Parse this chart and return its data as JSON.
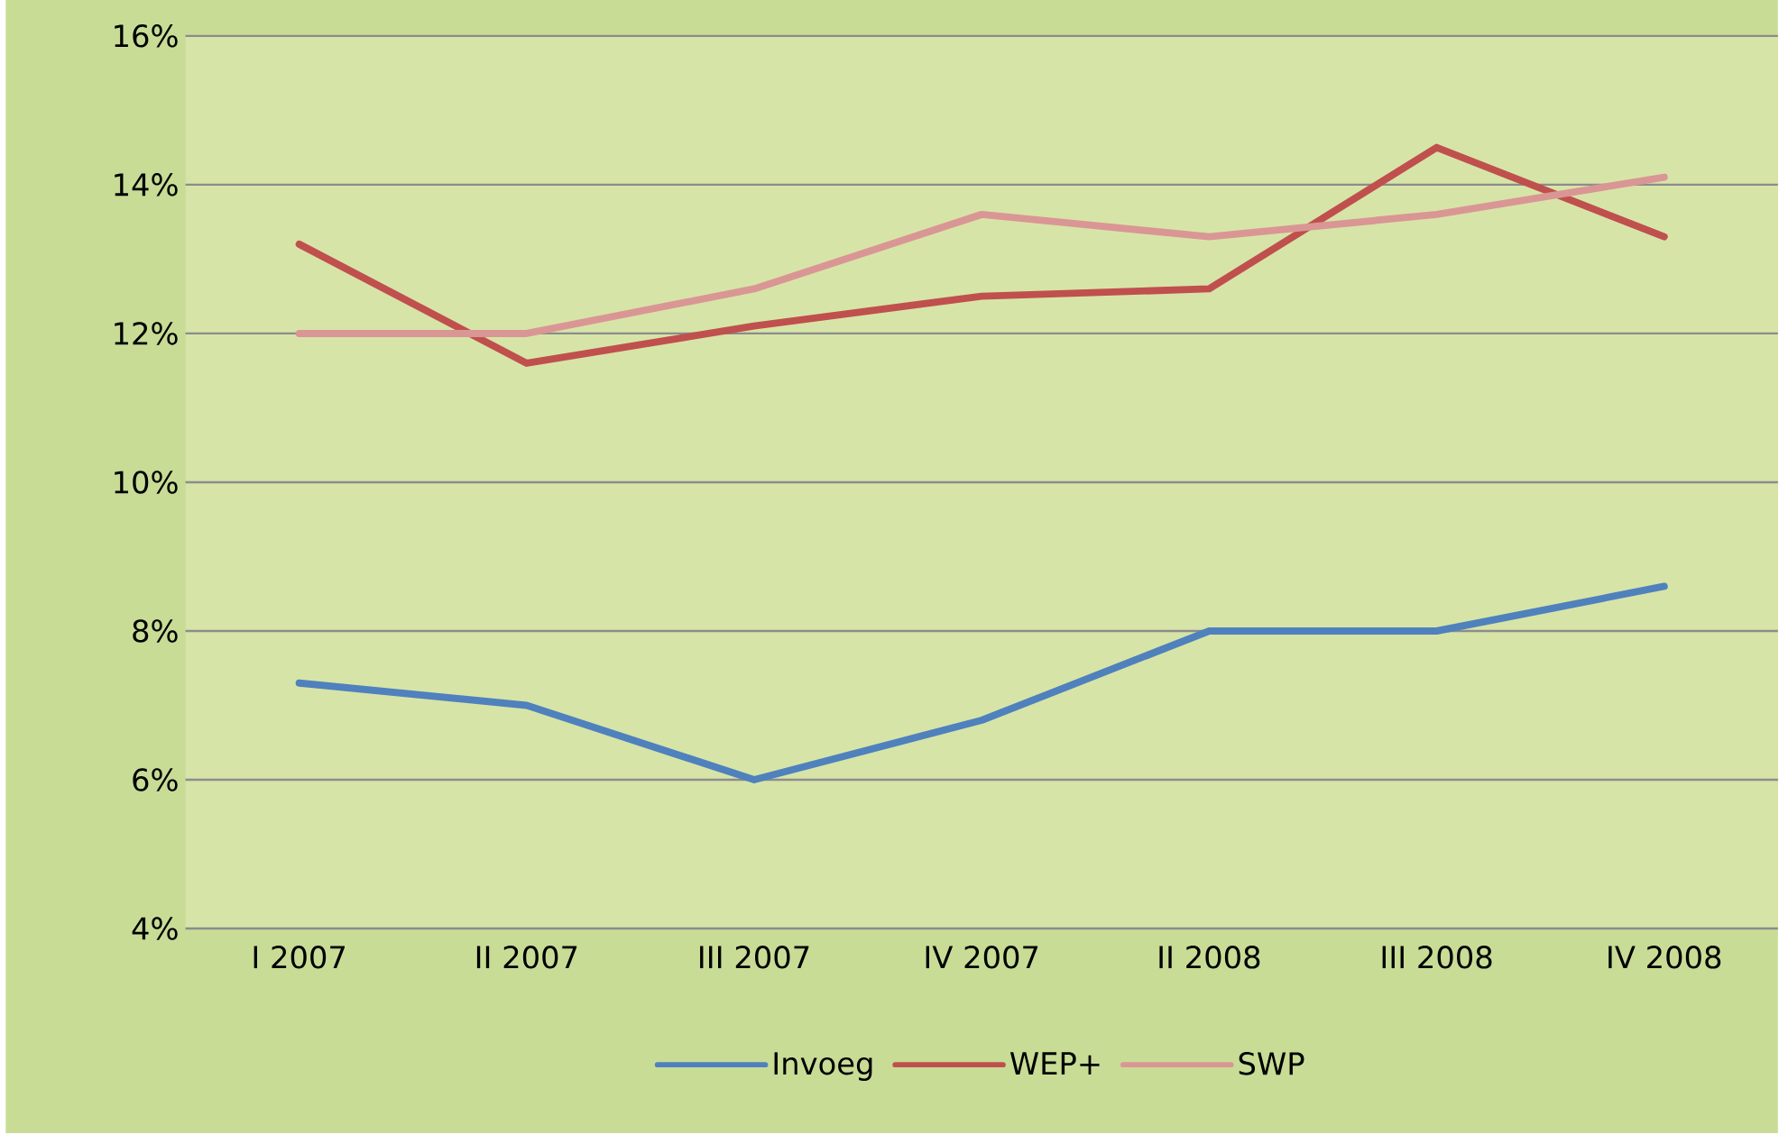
{
  "chart_data": {
    "type": "line",
    "categories": [
      "I 2007",
      "II 2007",
      "III 2007",
      "IV 2007",
      "II 2008",
      "III 2008",
      "IV 2008"
    ],
    "series": [
      {
        "name": "Invoeg",
        "color": "#4f81bd",
        "values": [
          7.3,
          7.0,
          6.0,
          6.8,
          8.0,
          8.0,
          8.6
        ]
      },
      {
        "name": "WEP+",
        "color": "#c0504d",
        "values": [
          13.2,
          11.6,
          12.1,
          12.5,
          12.6,
          14.5,
          13.3
        ]
      },
      {
        "name": "SWP",
        "color": "#da9694",
        "values": [
          12.0,
          12.0,
          12.6,
          13.6,
          13.3,
          13.6,
          14.1
        ]
      }
    ],
    "ylim": [
      4,
      16
    ],
    "yticks": [
      {
        "value": 4,
        "label": "4%"
      },
      {
        "value": 6,
        "label": "6%"
      },
      {
        "value": 8,
        "label": "8%"
      },
      {
        "value": 10,
        "label": "10%"
      },
      {
        "value": 12,
        "label": "12%"
      },
      {
        "value": 14,
        "label": "14%"
      },
      {
        "value": 16,
        "label": "16%"
      }
    ],
    "grid": "y",
    "legend": "bottom",
    "marker": "none",
    "line_style": "solid"
  }
}
